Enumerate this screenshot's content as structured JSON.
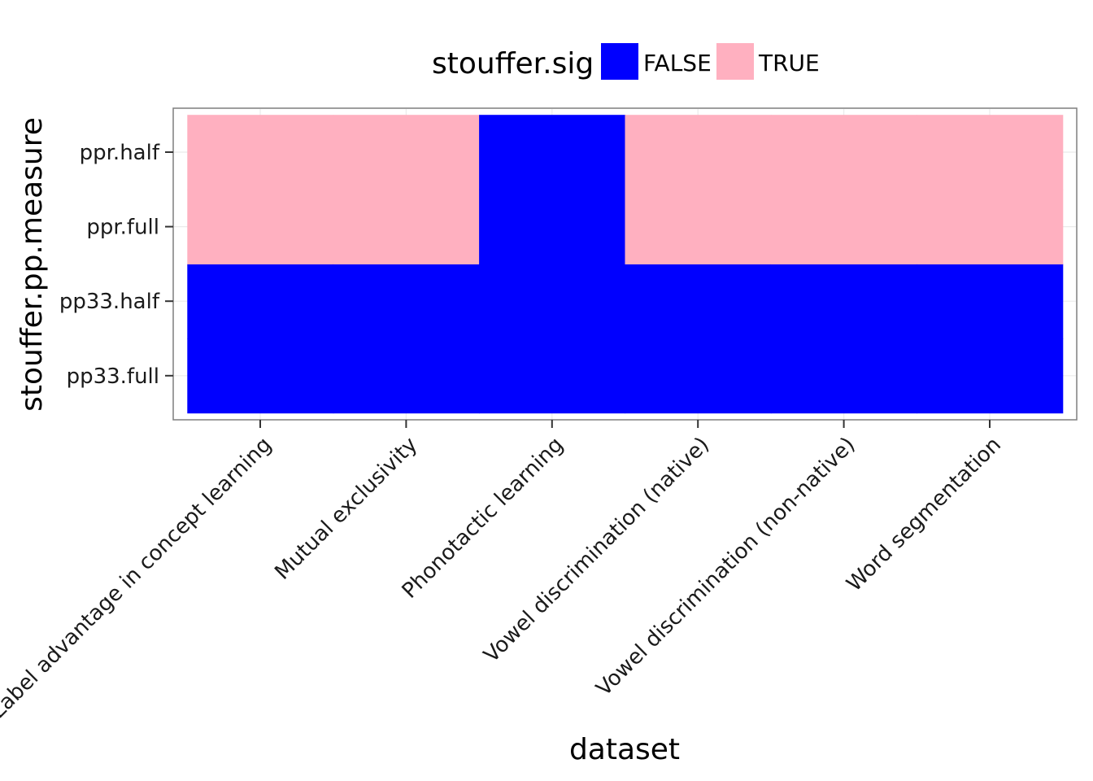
{
  "chart_data": {
    "type": "heatmap",
    "title": "",
    "xlabel": "dataset",
    "ylabel": "stouffer.pp.measure",
    "x_categories": [
      "Label advantage in concept learning",
      "Mutual exclusivity",
      "Phonotactic learning",
      "Vowel discrimination (native)",
      "Vowel discrimination (non-native)",
      "Word segmentation"
    ],
    "y_categories": [
      "pp33.full",
      "pp33.half",
      "ppr.full",
      "ppr.half"
    ],
    "legend": {
      "title": "stouffer.sig",
      "position": "top",
      "entries": [
        {
          "label": "FALSE",
          "color": "#0000ff"
        },
        {
          "label": "TRUE",
          "color": "#ffb0c0"
        }
      ]
    },
    "cells": [
      {
        "x": "Label advantage in concept learning",
        "y": "pp33.full",
        "value": "FALSE"
      },
      {
        "x": "Label advantage in concept learning",
        "y": "pp33.half",
        "value": "FALSE"
      },
      {
        "x": "Label advantage in concept learning",
        "y": "ppr.full",
        "value": "TRUE"
      },
      {
        "x": "Label advantage in concept learning",
        "y": "ppr.half",
        "value": "TRUE"
      },
      {
        "x": "Mutual exclusivity",
        "y": "pp33.full",
        "value": "FALSE"
      },
      {
        "x": "Mutual exclusivity",
        "y": "pp33.half",
        "value": "FALSE"
      },
      {
        "x": "Mutual exclusivity",
        "y": "ppr.full",
        "value": "TRUE"
      },
      {
        "x": "Mutual exclusivity",
        "y": "ppr.half",
        "value": "TRUE"
      },
      {
        "x": "Phonotactic learning",
        "y": "pp33.full",
        "value": "FALSE"
      },
      {
        "x": "Phonotactic learning",
        "y": "pp33.half",
        "value": "FALSE"
      },
      {
        "x": "Phonotactic learning",
        "y": "ppr.full",
        "value": "FALSE"
      },
      {
        "x": "Phonotactic learning",
        "y": "ppr.half",
        "value": "FALSE"
      },
      {
        "x": "Vowel discrimination (native)",
        "y": "pp33.full",
        "value": "FALSE"
      },
      {
        "x": "Vowel discrimination (native)",
        "y": "pp33.half",
        "value": "FALSE"
      },
      {
        "x": "Vowel discrimination (native)",
        "y": "ppr.full",
        "value": "TRUE"
      },
      {
        "x": "Vowel discrimination (native)",
        "y": "ppr.half",
        "value": "TRUE"
      },
      {
        "x": "Vowel discrimination (non-native)",
        "y": "pp33.full",
        "value": "FALSE"
      },
      {
        "x": "Vowel discrimination (non-native)",
        "y": "pp33.half",
        "value": "FALSE"
      },
      {
        "x": "Vowel discrimination (non-native)",
        "y": "ppr.full",
        "value": "TRUE"
      },
      {
        "x": "Vowel discrimination (non-native)",
        "y": "ppr.half",
        "value": "TRUE"
      },
      {
        "x": "Word segmentation",
        "y": "pp33.full",
        "value": "FALSE"
      },
      {
        "x": "Word segmentation",
        "y": "pp33.half",
        "value": "FALSE"
      },
      {
        "x": "Word segmentation",
        "y": "ppr.full",
        "value": "TRUE"
      },
      {
        "x": "Word segmentation",
        "y": "ppr.half",
        "value": "TRUE"
      }
    ]
  }
}
